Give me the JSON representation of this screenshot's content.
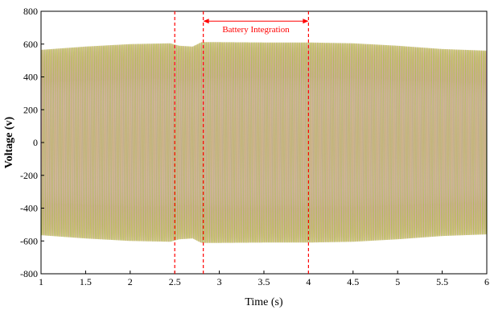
{
  "chart_data": {
    "type": "line",
    "title": "",
    "xlabel": "Time (s)",
    "ylabel": "Voltage (v)",
    "xlim": [
      1,
      6
    ],
    "ylim": [
      -800,
      800
    ],
    "xticks": [
      1,
      1.5,
      2,
      2.5,
      3,
      3.5,
      4,
      4.5,
      5,
      5.5,
      6
    ],
    "yticks": [
      800,
      600,
      400,
      200,
      0,
      -200,
      -400,
      -600,
      -800
    ],
    "xtick_labels": [
      "1",
      "1.5",
      "2",
      "2.5",
      "3",
      "3.5",
      "4",
      "4.5",
      "5",
      "5.5",
      "6"
    ],
    "ytick_labels": [
      "800",
      "600",
      "400",
      "200",
      "0",
      "-200",
      "-400",
      "-600",
      "-800"
    ],
    "grid": false,
    "signal": {
      "description_type": "three-phase sinusoid envelope",
      "colors": [
        "#c8c81e",
        "#9ab84a",
        "#d8a0b8"
      ],
      "envelope": {
        "x": [
          1.0,
          1.5,
          2.0,
          2.45,
          2.55,
          2.7,
          2.8,
          3.0,
          3.5,
          4.0,
          4.5,
          5.0,
          5.5,
          6.0
        ],
        "y": [
          565,
          585,
          600,
          605,
          590,
          585,
          612,
          612,
          610,
          610,
          605,
          590,
          570,
          560
        ]
      }
    },
    "vlines": [
      {
        "x": 2.5,
        "color": "#ff0000"
      },
      {
        "x": 2.82,
        "color": "#ff0000"
      },
      {
        "x": 4.0,
        "color": "#ff0000"
      }
    ],
    "annotation": {
      "text": "Battery Integration",
      "x_start": 2.82,
      "x_end": 4.0,
      "y": 740,
      "color": "#ff0000"
    }
  }
}
